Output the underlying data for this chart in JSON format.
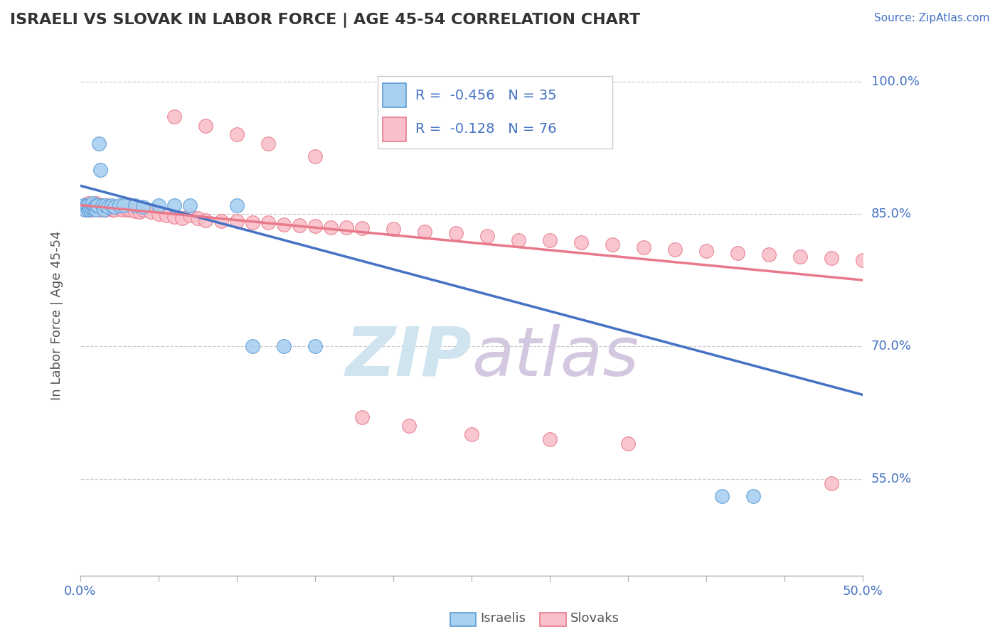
{
  "title": "ISRAELI VS SLOVAK IN LABOR FORCE | AGE 45-54 CORRELATION CHART",
  "source_text": "Source: ZipAtlas.com",
  "ylabel": "In Labor Force | Age 45-54",
  "xlim": [
    0.0,
    0.5
  ],
  "ylim": [
    0.44,
    1.03
  ],
  "ytick_positions": [
    0.55,
    0.7,
    0.85,
    1.0
  ],
  "ytick_labels": [
    "55.0%",
    "70.0%",
    "85.0%",
    "100.0%"
  ],
  "israelis_color": "#A8D0F0",
  "israelis_edge_color": "#5B9BD5",
  "slovaks_color": "#F9C0CB",
  "slovaks_edge_color": "#E8798A",
  "israeli_line_color": "#4472C4",
  "slovak_line_color": "#E8798A",
  "watermark_color": "#D0E4F0",
  "background_color": "#FFFFFF",
  "legend_text_color": "#4472C4",
  "legend_R_israeli": "-0.456",
  "legend_N_israeli": "35",
  "legend_R_slovak": "-0.128",
  "legend_N_slovak": "76",
  "israelis_x": [
    0.002,
    0.003,
    0.004,
    0.005,
    0.005,
    0.006,
    0.007,
    0.007,
    0.008,
    0.008,
    0.009,
    0.01,
    0.01,
    0.011,
    0.012,
    0.013,
    0.014,
    0.015,
    0.016,
    0.018,
    0.02,
    0.022,
    0.025,
    0.028,
    0.035,
    0.04,
    0.05,
    0.06,
    0.07,
    0.1,
    0.11,
    0.13,
    0.15,
    0.41,
    0.43
  ],
  "israelis_y": [
    0.86,
    0.855,
    0.86,
    0.855,
    0.86,
    0.856,
    0.857,
    0.858,
    0.86,
    0.862,
    0.858,
    0.855,
    0.86,
    0.86,
    0.93,
    0.9,
    0.86,
    0.855,
    0.86,
    0.858,
    0.86,
    0.858,
    0.86,
    0.86,
    0.86,
    0.858,
    0.86,
    0.86,
    0.86,
    0.86,
    0.7,
    0.7,
    0.7,
    0.53,
    0.53
  ],
  "slovaks_x": [
    0.002,
    0.003,
    0.004,
    0.005,
    0.006,
    0.007,
    0.007,
    0.008,
    0.009,
    0.01,
    0.01,
    0.011,
    0.012,
    0.013,
    0.014,
    0.015,
    0.016,
    0.017,
    0.018,
    0.019,
    0.02,
    0.021,
    0.022,
    0.023,
    0.025,
    0.027,
    0.03,
    0.032,
    0.035,
    0.038,
    0.04,
    0.045,
    0.05,
    0.055,
    0.06,
    0.065,
    0.07,
    0.075,
    0.08,
    0.09,
    0.1,
    0.11,
    0.12,
    0.13,
    0.14,
    0.15,
    0.16,
    0.17,
    0.18,
    0.2,
    0.22,
    0.24,
    0.26,
    0.28,
    0.3,
    0.32,
    0.34,
    0.36,
    0.38,
    0.4,
    0.42,
    0.44,
    0.46,
    0.48,
    0.5,
    0.06,
    0.08,
    0.1,
    0.12,
    0.15,
    0.18,
    0.21,
    0.25,
    0.3,
    0.35,
    0.48
  ],
  "slovaks_y": [
    0.858,
    0.86,
    0.855,
    0.862,
    0.858,
    0.86,
    0.855,
    0.86,
    0.86,
    0.858,
    0.862,
    0.858,
    0.86,
    0.855,
    0.86,
    0.858,
    0.855,
    0.86,
    0.858,
    0.857,
    0.858,
    0.855,
    0.855,
    0.858,
    0.857,
    0.855,
    0.855,
    0.855,
    0.853,
    0.852,
    0.855,
    0.852,
    0.85,
    0.848,
    0.847,
    0.845,
    0.848,
    0.845,
    0.843,
    0.842,
    0.842,
    0.84,
    0.84,
    0.838,
    0.837,
    0.836,
    0.835,
    0.835,
    0.834,
    0.833,
    0.83,
    0.828,
    0.825,
    0.82,
    0.82,
    0.818,
    0.815,
    0.812,
    0.81,
    0.808,
    0.806,
    0.804,
    0.802,
    0.8,
    0.798,
    0.96,
    0.95,
    0.94,
    0.93,
    0.915,
    0.62,
    0.61,
    0.6,
    0.595,
    0.59,
    0.545
  ]
}
